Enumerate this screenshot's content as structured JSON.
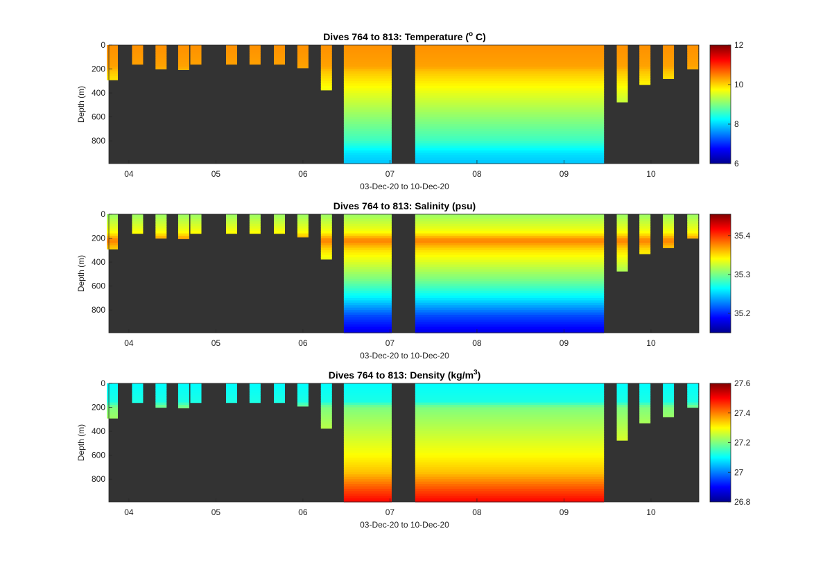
{
  "chart_data": [
    {
      "type": "heatmap",
      "title": "Dives 764 to 813: Temperature (° C)",
      "title_parts": {
        "main": "Dives 764 to 813: Temperature (",
        "sup": "o",
        "tail": " C)"
      },
      "xlabel": "03-Dec-20 to 10-Dec-20",
      "ylabel": "Depth (m)",
      "xticks": [
        "04",
        "05",
        "06",
        "07",
        "08",
        "09",
        "10"
      ],
      "yticks": [
        "0",
        "200",
        "400",
        "600",
        "800"
      ],
      "ylim": [
        0,
        990
      ],
      "colorbar": {
        "range": [
          6,
          12
        ],
        "ticks": [
          "6",
          "8",
          "10",
          "12"
        ],
        "colormap": "jet"
      },
      "no_data_color": "#333333",
      "profile": {
        "depths": [
          0,
          180,
          220,
          400,
          600,
          800,
          900,
          990
        ],
        "values": [
          10.4,
          10.3,
          10.1,
          9.6,
          9.1,
          8.6,
          8.1,
          7.9
        ]
      }
    },
    {
      "type": "heatmap",
      "title": "Dives 764 to 813: Salinity (psu)",
      "xlabel": "03-Dec-20 to 10-Dec-20",
      "ylabel": "Depth (m)",
      "xticks": [
        "04",
        "05",
        "06",
        "07",
        "08",
        "09",
        "10"
      ],
      "yticks": [
        "0",
        "200",
        "400",
        "600",
        "800"
      ],
      "ylim": [
        0,
        990
      ],
      "colorbar": {
        "range": [
          35.15,
          35.455
        ],
        "ticks": [
          "35.2",
          "35.3",
          "35.4"
        ],
        "colormap": "jet"
      },
      "no_data_color": "#333333",
      "profile": {
        "depths": [
          0,
          150,
          220,
          300,
          400,
          550,
          700,
          850,
          990
        ],
        "values": [
          35.31,
          35.34,
          35.38,
          35.35,
          35.33,
          35.3,
          35.26,
          35.21,
          35.18
        ]
      }
    },
    {
      "type": "heatmap",
      "title": "Dives 764 to 813: Density (kg/m³)",
      "title_parts": {
        "main": "Dives 764 to 813: Density (kg/m",
        "sup": "3",
        "tail": ")"
      },
      "xlabel": "03-Dec-20 to 10-Dec-20",
      "ylabel": "Depth (m)",
      "xticks": [
        "04",
        "05",
        "06",
        "07",
        "08",
        "09",
        "10"
      ],
      "yticks": [
        "0",
        "200",
        "400",
        "600",
        "800"
      ],
      "ylim": [
        0,
        990
      ],
      "colorbar": {
        "range": [
          26.8,
          27.6
        ],
        "ticks": [
          "26.8",
          "27",
          "27.2",
          "27.4",
          "27.6"
        ],
        "colormap": "jet"
      },
      "no_data_color": "#333333",
      "profile": {
        "depths": [
          0,
          150,
          200,
          400,
          600,
          750,
          900,
          990
        ],
        "values": [
          27.1,
          27.12,
          27.2,
          27.25,
          27.3,
          27.35,
          27.45,
          27.5
        ]
      }
    }
  ],
  "dives": {
    "x_domain": [
      3.77,
      10.55
    ],
    "shallow": [
      {
        "day": 3.81,
        "max_depth": 290
      },
      {
        "day": 4.1,
        "max_depth": 160
      },
      {
        "day": 4.37,
        "max_depth": 200
      },
      {
        "day": 4.63,
        "max_depth": 205
      },
      {
        "day": 4.77,
        "max_depth": 160
      },
      {
        "day": 5.18,
        "max_depth": 160
      },
      {
        "day": 5.45,
        "max_depth": 160
      },
      {
        "day": 5.73,
        "max_depth": 160
      },
      {
        "day": 6.0,
        "max_depth": 190
      },
      {
        "day": 6.27,
        "max_depth": 375
      },
      {
        "day": 9.67,
        "max_depth": 475
      },
      {
        "day": 9.93,
        "max_depth": 330
      },
      {
        "day": 10.2,
        "max_depth": 280
      },
      {
        "day": 10.48,
        "max_depth": 200
      }
    ],
    "full_blocks": [
      {
        "start": 6.47,
        "end": 7.02,
        "max_depth": 990
      },
      {
        "start": 7.29,
        "end": 9.46,
        "max_depth": 990
      }
    ]
  }
}
